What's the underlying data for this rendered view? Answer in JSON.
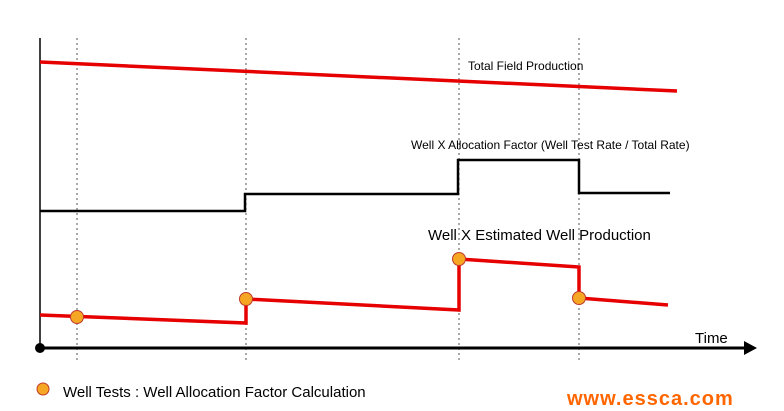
{
  "labels": {
    "total_field": "Total Field Production",
    "allocation_factor": "Well X Allocation Factor (Well Test Rate / Total Rate)",
    "estimated_production": "Well X Estimated Well Production",
    "x_axis": "Time",
    "legend": "Well Tests : Well Allocation Factor Calculation",
    "watermark": "www.essca.com"
  },
  "colors": {
    "production_line": "#e60000",
    "factor_line": "#000000",
    "test_marker_fill": "#f5a623",
    "test_marker_stroke": "#c0392b",
    "grid_dashed": "#555555",
    "watermark": "#ff6600"
  },
  "legend": {
    "marker_icon": "orange-circle-icon"
  }
}
